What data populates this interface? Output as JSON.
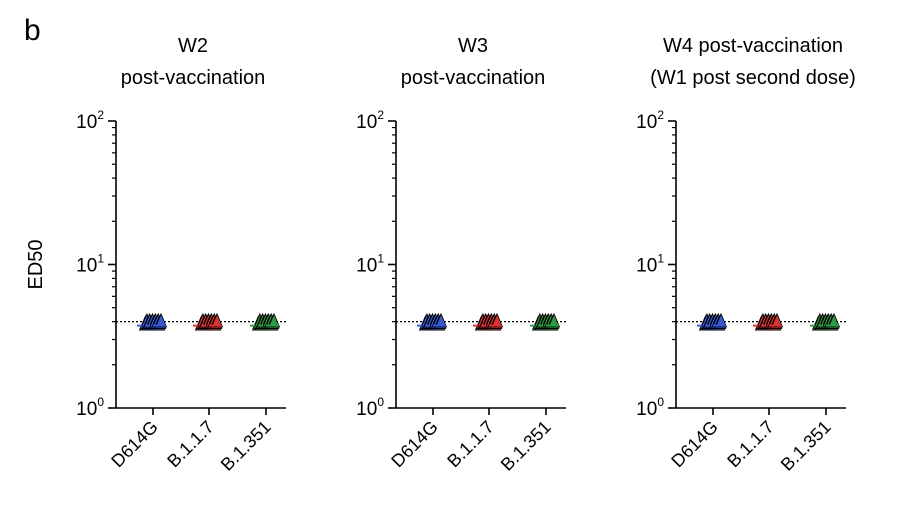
{
  "panel_letter": "b",
  "chart_data": [
    {
      "type": "scatter",
      "title": [
        "W2",
        "post-vaccination"
      ],
      "ylabel": "ED50",
      "categories": [
        "D614G",
        "B.1.1.7",
        "B.1.351"
      ],
      "yscale": "log",
      "ylim": [
        1,
        100
      ],
      "yticks": [
        {
          "base": "10",
          "exp": "0",
          "value": 1
        },
        {
          "base": "10",
          "exp": "1",
          "value": 10
        },
        {
          "base": "10",
          "exp": "2",
          "value": 100
        }
      ],
      "reference_line": 4,
      "series": [
        {
          "category": "D614G",
          "color": "#3b5bdb",
          "values": [
            4,
            4,
            4,
            4,
            4,
            4,
            4,
            4,
            4,
            4,
            4,
            4,
            4,
            4,
            4,
            4,
            4,
            4
          ]
        },
        {
          "category": "B.1.1.7",
          "color": "#e03131",
          "values": [
            4,
            4,
            4,
            4,
            4,
            4,
            4,
            4,
            4,
            4,
            4,
            4,
            4,
            4,
            4,
            4,
            4,
            4
          ]
        },
        {
          "category": "B.1.351",
          "color": "#2f9e44",
          "values": [
            4,
            4,
            4,
            4,
            4,
            4,
            4,
            4,
            4,
            4,
            4,
            4,
            4,
            4,
            4,
            4,
            4,
            4
          ]
        }
      ]
    },
    {
      "type": "scatter",
      "title": [
        "W3",
        "post-vaccination"
      ],
      "ylabel": "",
      "categories": [
        "D614G",
        "B.1.1.7",
        "B.1.351"
      ],
      "yscale": "log",
      "ylim": [
        1,
        100
      ],
      "yticks": [
        {
          "base": "10",
          "exp": "0",
          "value": 1
        },
        {
          "base": "10",
          "exp": "1",
          "value": 10
        },
        {
          "base": "10",
          "exp": "2",
          "value": 100
        }
      ],
      "reference_line": 4,
      "series": [
        {
          "category": "D614G",
          "color": "#3b5bdb",
          "values": [
            4,
            4,
            4,
            4,
            4,
            4,
            4,
            4,
            4,
            4,
            4,
            4,
            4,
            4,
            4,
            4,
            4,
            4
          ]
        },
        {
          "category": "B.1.1.7",
          "color": "#e03131",
          "values": [
            4,
            4,
            4,
            4,
            4,
            4,
            4,
            4,
            4,
            4,
            4,
            4,
            4,
            4,
            4,
            4,
            4,
            4
          ]
        },
        {
          "category": "B.1.351",
          "color": "#2f9e44",
          "values": [
            4,
            4,
            4,
            4,
            4,
            4,
            4,
            4,
            4,
            4,
            4,
            4,
            4,
            4,
            4,
            4,
            4,
            4
          ]
        }
      ]
    },
    {
      "type": "scatter",
      "title": [
        "W4 post-vaccination",
        "(W1 post second dose)"
      ],
      "ylabel": "",
      "categories": [
        "D614G",
        "B.1.1.7",
        "B.1.351"
      ],
      "yscale": "log",
      "ylim": [
        1,
        100
      ],
      "yticks": [
        {
          "base": "10",
          "exp": "0",
          "value": 1
        },
        {
          "base": "10",
          "exp": "1",
          "value": 10
        },
        {
          "base": "10",
          "exp": "2",
          "value": 100
        }
      ],
      "reference_line": 4,
      "series": [
        {
          "category": "D614G",
          "color": "#3b5bdb",
          "values": [
            4,
            4,
            4,
            4,
            4,
            4,
            4,
            4,
            4,
            4,
            4,
            4,
            4,
            4,
            4,
            4,
            4,
            4
          ]
        },
        {
          "category": "B.1.1.7",
          "color": "#e03131",
          "values": [
            4,
            4,
            4,
            4,
            4,
            4,
            4,
            4,
            4,
            4,
            4,
            4,
            4,
            4,
            4,
            4,
            4,
            4
          ]
        },
        {
          "category": "B.1.351",
          "color": "#2f9e44",
          "values": [
            4,
            4,
            4,
            4,
            4,
            4,
            4,
            4,
            4,
            4,
            4,
            4,
            4,
            4,
            4,
            4,
            4,
            4
          ]
        }
      ]
    }
  ]
}
